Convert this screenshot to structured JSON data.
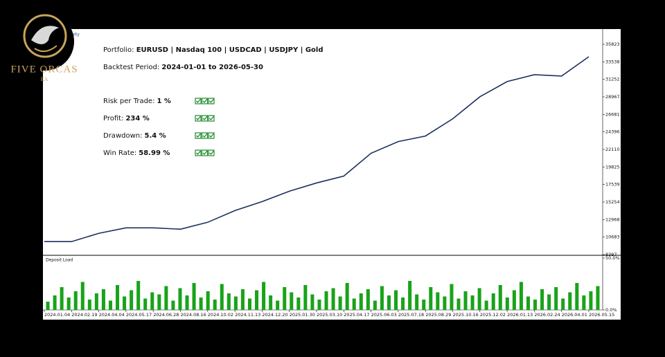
{
  "logo": {
    "name": "FIVE ORCAS",
    "sub": "EA"
  },
  "overlay": {
    "portfolio": {
      "label": "Portfolio:",
      "value": "EURUSD | Nasdaq 100 | USDCAD | USDJPY | Gold"
    },
    "period": {
      "label": "Backtest Period:",
      "value": "2024-01-01 to 2026-05-30"
    },
    "stats": [
      {
        "label": "Risk per Trade:",
        "value": "1 %"
      },
      {
        "label": "Profit:",
        "value": "234 %"
      },
      {
        "label": "Drawdown:",
        "value": "5.4 %"
      },
      {
        "label": "Win Rate:",
        "value": "58.99 %"
      }
    ]
  },
  "chart_data": [
    {
      "type": "line",
      "categories": [
        "2024.01.04",
        "2024.02.19",
        "2024.04.04",
        "2024.05.17",
        "2024.06.28",
        "2024.08.16",
        "2024.10.02",
        "2024.11.13",
        "2024.12.20",
        "2025.01.30",
        "2025.03.10",
        "2025.04.17",
        "2025.06.03",
        "2025.07.18",
        "2025.08.29",
        "2025.10.16",
        "2025.12.02",
        "2026.01.13",
        "2026.02.24",
        "2026.04.01",
        "2026.05.15"
      ],
      "series": [
        {
          "name": "Balance / Equity",
          "color": "#1b2f5e",
          "values": [
            10090,
            10090,
            11170,
            11890,
            11890,
            11710,
            12610,
            14140,
            15310,
            16660,
            17740,
            18640,
            21610,
            23140,
            23860,
            26100,
            28980,
            30960,
            31860,
            31680,
            34200
          ]
        }
      ],
      "ylim": [
        8397,
        37808
      ],
      "yticks": [
        35823,
        33538,
        31252,
        28967,
        26681,
        24396,
        22110,
        19825,
        17539,
        15254,
        12968,
        10683,
        8397
      ]
    },
    {
      "type": "bar",
      "title": "Deposit Load",
      "color": "#19a319",
      "values": [
        8,
        14,
        22,
        12,
        18,
        27,
        10,
        16,
        20,
        9,
        24,
        13,
        19,
        28,
        11,
        17,
        15,
        23,
        9,
        21,
        14,
        26,
        12,
        18,
        10,
        25,
        16,
        13,
        20,
        11,
        19,
        27,
        14,
        9,
        22,
        17,
        12,
        24,
        15,
        10,
        18,
        21,
        13,
        26,
        11,
        16,
        20,
        9,
        23,
        14,
        19,
        12,
        28,
        15,
        10,
        22,
        17,
        13,
        25,
        11,
        18,
        14,
        21,
        9,
        16,
        24,
        12,
        19,
        27,
        13,
        10,
        20,
        15,
        22,
        11,
        17,
        26,
        14,
        18,
        23
      ],
      "ylim": [
        0,
        50
      ],
      "yticks": [
        {
          "value": 50,
          "label": "50.0%"
        },
        {
          "value": 0,
          "label": "0.0%"
        }
      ]
    }
  ]
}
